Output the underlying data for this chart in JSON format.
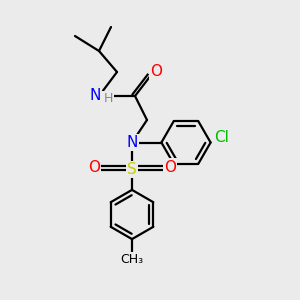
{
  "bg_color": "#ebebeb",
  "atom_colors": {
    "N": "#0000ff",
    "O": "#ff0000",
    "S": "#cccc00",
    "Cl": "#00bb00",
    "H": "#888888",
    "C": "#000000"
  },
  "font_size_atom": 11,
  "font_size_small": 9,
  "line_width": 1.6
}
